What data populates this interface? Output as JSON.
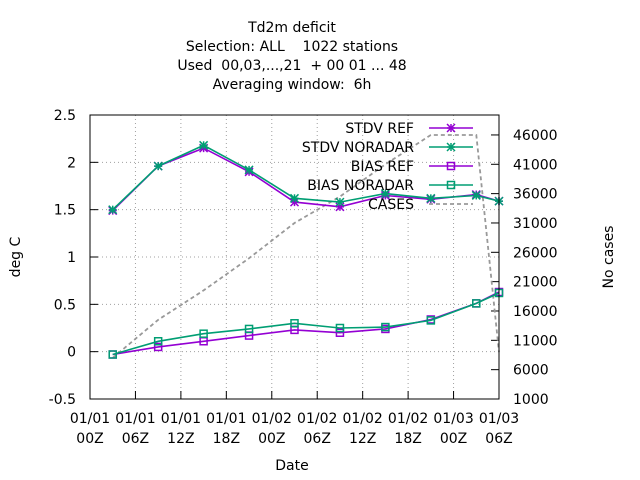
{
  "chart_data": {
    "type": "line",
    "title_lines": [
      "Td2m deficit",
      "Selection: ALL    1022 stations",
      "Used  00,03,...,21  + 00 01 ... 48",
      "Averaging window:  6h"
    ],
    "xlabel": "Date",
    "ylabel": "deg C",
    "y2label": "No cases",
    "x_ticks": [
      {
        "top": "01/01",
        "bottom": "00Z"
      },
      {
        "top": "01/01",
        "bottom": "06Z"
      },
      {
        "top": "01/01",
        "bottom": "12Z"
      },
      {
        "top": "01/01",
        "bottom": "18Z"
      },
      {
        "top": "01/02",
        "bottom": "00Z"
      },
      {
        "top": "01/02",
        "bottom": "06Z"
      },
      {
        "top": "01/02",
        "bottom": "12Z"
      },
      {
        "top": "01/02",
        "bottom": "18Z"
      },
      {
        "top": "01/03",
        "bottom": "00Z"
      },
      {
        "top": "01/03",
        "bottom": "06Z"
      }
    ],
    "xlim": [
      0,
      54
    ],
    "ylim": [
      -0.5,
      2.5
    ],
    "y_ticks": [
      -0.5,
      0,
      0.5,
      1,
      1.5,
      2,
      2.5
    ],
    "y_tick_labels": [
      "-0.5",
      "0",
      "0.5",
      "1",
      "1.5",
      "2",
      "2.5"
    ],
    "y2lim": [
      1000,
      49400
    ],
    "y2_ticks": [
      1000,
      6000,
      11000,
      16000,
      21000,
      26000,
      31000,
      36000,
      41000,
      46000
    ],
    "grid": true,
    "legend_position": "top-right",
    "x": [
      3,
      9,
      15,
      21,
      27,
      33,
      39,
      45,
      51,
      54
    ],
    "series": [
      {
        "name": "STDV REF",
        "axis": "left",
        "color": "#9400d3",
        "marker": "x",
        "style": "solid",
        "values": [
          1.49,
          1.96,
          2.15,
          1.9,
          1.58,
          1.53,
          1.65,
          1.61,
          1.66,
          1.59
        ]
      },
      {
        "name": "STDV NORADAR",
        "axis": "left",
        "color": "#009e73",
        "marker": "x",
        "style": "solid",
        "values": [
          1.5,
          1.96,
          2.18,
          1.92,
          1.62,
          1.58,
          1.67,
          1.62,
          1.65,
          1.59
        ]
      },
      {
        "name": "BIAS REF",
        "axis": "left",
        "color": "#9400d3",
        "marker": "square",
        "style": "solid",
        "values": [
          -0.03,
          0.05,
          0.11,
          0.17,
          0.23,
          0.2,
          0.24,
          0.34,
          0.51,
          0.63
        ]
      },
      {
        "name": "BIAS NORADAR",
        "axis": "left",
        "color": "#009e73",
        "marker": "square",
        "style": "solid",
        "values": [
          -0.03,
          0.11,
          0.19,
          0.24,
          0.3,
          0.25,
          0.26,
          0.33,
          0.51,
          0.62
        ]
      },
      {
        "name": "CASES",
        "axis": "right",
        "color": "#999999",
        "marker": "none",
        "style": "dashed",
        "values": [
          8000,
          14500,
          19500,
          25000,
          31000,
          35500,
          41000,
          46000,
          46000,
          9000
        ]
      }
    ]
  }
}
